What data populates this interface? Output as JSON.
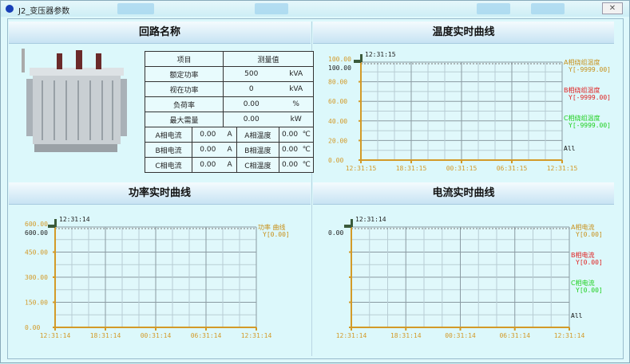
{
  "window": {
    "title": "J2_变压器参数",
    "close_icon": "close-icon"
  },
  "panels": {
    "circuit": "回路名称",
    "temperature": "温度实时曲线",
    "power": "功率实时曲线",
    "current": "电流实时曲线"
  },
  "table": {
    "headers": [
      "项目",
      "测量值"
    ],
    "rows": [
      {
        "label": "额定功率",
        "value": "500",
        "unit": "kVA"
      },
      {
        "label": "视在功率",
        "value": "0",
        "unit": "kVA"
      },
      {
        "label": "负荷率",
        "value": "0.00",
        "unit": "%"
      },
      {
        "label": "最大需量",
        "value": "0.00",
        "unit": "kW"
      }
    ],
    "phase_rows": [
      {
        "c_label": "A相电流",
        "c_value": "0.00",
        "c_unit": "A",
        "t_label": "A相温度",
        "t_value": "0.00",
        "t_unit": "℃"
      },
      {
        "c_label": "B相电流",
        "c_value": "0.00",
        "c_unit": "A",
        "t_label": "B相温度",
        "t_value": "0.00",
        "t_unit": "℃"
      },
      {
        "c_label": "C相电流",
        "c_value": "0.00",
        "c_unit": "A",
        "t_label": "C相温度",
        "t_value": "0.00",
        "t_unit": "℃"
      }
    ]
  },
  "chart_data": [
    {
      "id": "temperature",
      "type": "line",
      "cursor_time": "12:31:15",
      "cursor_value": "100.00",
      "top_label": "100.00",
      "yticks": [
        "0.00",
        "20.00",
        "40.00",
        "60.00",
        "80.00"
      ],
      "ylim": [
        0,
        100
      ],
      "xticks": [
        "12:31:15",
        "18:31:15",
        "00:31:15",
        "06:31:15",
        "12:31:15"
      ],
      "series": [
        {
          "name": "A相绕组温度",
          "value": "Y[-9999.00]",
          "color": "#c8901a"
        },
        {
          "name": "B相绕组温度",
          "value": "Y[-9999.00]",
          "color": "#e02020"
        },
        {
          "name": "C相绕组温度",
          "value": "Y[-9999.00]",
          "color": "#20d020"
        }
      ],
      "all_label": "All",
      "grid": true
    },
    {
      "id": "power",
      "type": "line",
      "cursor_time": "12:31:14",
      "cursor_value": "600.00",
      "top_label": "600.00",
      "yticks": [
        "0.00",
        "150.00",
        "300.00",
        "450.00"
      ],
      "ylim": [
        0,
        600
      ],
      "xticks": [
        "12:31:14",
        "18:31:14",
        "00:31:14",
        "06:31:14",
        "12:31:14"
      ],
      "series": [
        {
          "name": "功率 曲线",
          "value": "Y[0.00]",
          "color": "#c8901a"
        }
      ],
      "grid": true
    },
    {
      "id": "current",
      "type": "line",
      "cursor_time": "12:31:14",
      "cursor_value": "0.00",
      "top_label": "",
      "yticks": [
        "",
        "",
        "",
        ""
      ],
      "ylim": [
        0,
        1
      ],
      "xticks": [
        "12:31:14",
        "18:31:14",
        "00:31:14",
        "06:31:14",
        "12:31:14"
      ],
      "series": [
        {
          "name": "A相电流",
          "value": "Y[0.00]",
          "color": "#c8901a"
        },
        {
          "name": "B相电流",
          "value": "Y[0.00]",
          "color": "#e02020"
        },
        {
          "name": "C相电流",
          "value": "Y[0.00]",
          "color": "#20d020"
        }
      ],
      "all_label": "All",
      "grid": true
    }
  ]
}
